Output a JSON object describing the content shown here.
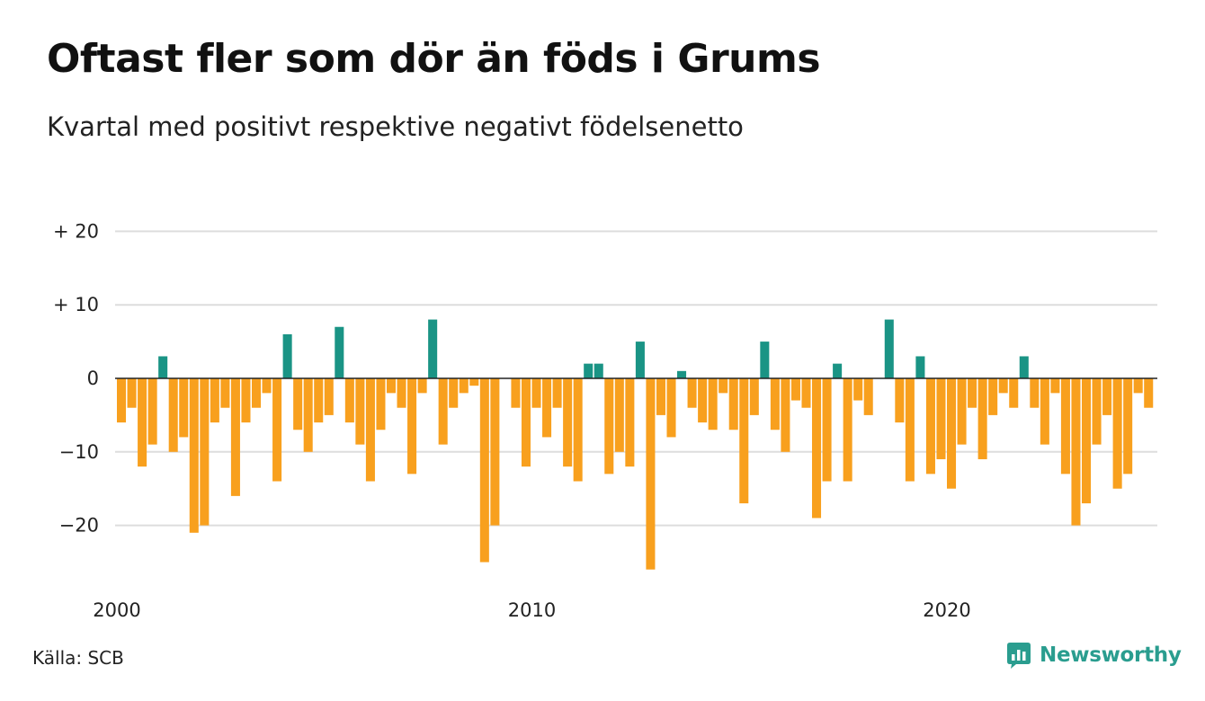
{
  "title": "Oftast fler som dör än föds i Grums",
  "subtitle": "Kvartal med positivt respektive negativt födelsenetto",
  "source": "Källa: SCB",
  "brand": "Newsworthy",
  "colors": {
    "positive": "#1a9485",
    "negative": "#f8a01e",
    "grid": "#dddddd",
    "zero": "#222222",
    "brand": "#2a9d8f"
  },
  "chart_data": {
    "type": "bar",
    "ylim": [
      -30,
      25
    ],
    "y_ticks": [
      {
        "value": 20,
        "label": "+ 20"
      },
      {
        "value": 10,
        "label": "+ 10"
      },
      {
        "value": 0,
        "label": "0"
      },
      {
        "value": -10,
        "label": "−10"
      },
      {
        "value": -20,
        "label": "−20"
      }
    ],
    "x_ticks": [
      {
        "year": 2000,
        "label": "2000"
      },
      {
        "year": 2010,
        "label": "2010"
      },
      {
        "year": 2020,
        "label": "2020"
      }
    ],
    "categories": [
      "2000Q1",
      "2000Q2",
      "2000Q3",
      "2000Q4",
      "2001Q1",
      "2001Q2",
      "2001Q3",
      "2001Q4",
      "2002Q1",
      "2002Q2",
      "2002Q3",
      "2002Q4",
      "2003Q1",
      "2003Q2",
      "2003Q3",
      "2003Q4",
      "2004Q1",
      "2004Q2",
      "2004Q3",
      "2004Q4",
      "2005Q1",
      "2005Q2",
      "2005Q3",
      "2005Q4",
      "2006Q1",
      "2006Q2",
      "2006Q3",
      "2006Q4",
      "2007Q1",
      "2007Q2",
      "2007Q3",
      "2007Q4",
      "2008Q1",
      "2008Q2",
      "2008Q3",
      "2008Q4",
      "2009Q1",
      "2009Q2",
      "2009Q3",
      "2009Q4",
      "2010Q1",
      "2010Q2",
      "2010Q3",
      "2010Q4",
      "2011Q1",
      "2011Q2",
      "2011Q3",
      "2011Q4",
      "2012Q1",
      "2012Q2",
      "2012Q3",
      "2012Q4",
      "2013Q1",
      "2013Q2",
      "2013Q3",
      "2013Q4",
      "2014Q1",
      "2014Q2",
      "2014Q3",
      "2014Q4",
      "2015Q1",
      "2015Q2",
      "2015Q3",
      "2015Q4",
      "2016Q1",
      "2016Q2",
      "2016Q3",
      "2016Q4",
      "2017Q1",
      "2017Q2",
      "2017Q3",
      "2017Q4",
      "2018Q1",
      "2018Q2",
      "2018Q3",
      "2018Q4",
      "2019Q1",
      "2019Q2",
      "2019Q3",
      "2019Q4",
      "2020Q1",
      "2020Q2",
      "2020Q3",
      "2020Q4",
      "2021Q1",
      "2021Q2",
      "2021Q3",
      "2021Q4",
      "2022Q1",
      "2022Q2",
      "2022Q3",
      "2022Q4",
      "2023Q1",
      "2023Q2",
      "2023Q3",
      "2023Q4",
      "2024Q1",
      "2024Q2",
      "2024Q3",
      "2024Q4",
      "2025Q1"
    ],
    "values": [
      -6,
      -4,
      -12,
      -9,
      3,
      -10,
      -8,
      -21,
      -20,
      -6,
      -4,
      -16,
      -6,
      -4,
      -2,
      -14,
      6,
      -7,
      -10,
      -6,
      -5,
      7,
      -6,
      -9,
      -14,
      -7,
      -2,
      -4,
      -13,
      -2,
      8,
      -9,
      -4,
      -2,
      -1,
      -25,
      -20,
      0,
      -4,
      -12,
      -4,
      -8,
      -4,
      -12,
      -14,
      2,
      2,
      -13,
      -10,
      -12,
      5,
      -26,
      -5,
      -8,
      1,
      -4,
      -6,
      -7,
      -2,
      -7,
      -17,
      -5,
      5,
      -7,
      -10,
      -3,
      -4,
      -19,
      -14,
      2,
      -14,
      -3,
      -5,
      0,
      8,
      -6,
      -14,
      3,
      -13,
      -11,
      -15,
      -9,
      -4,
      -11,
      -5,
      -2,
      -4,
      3,
      -4,
      -9,
      -2,
      -13,
      -20,
      -17,
      -9,
      -5,
      -15,
      -13,
      -2,
      -4,
      0
    ]
  }
}
